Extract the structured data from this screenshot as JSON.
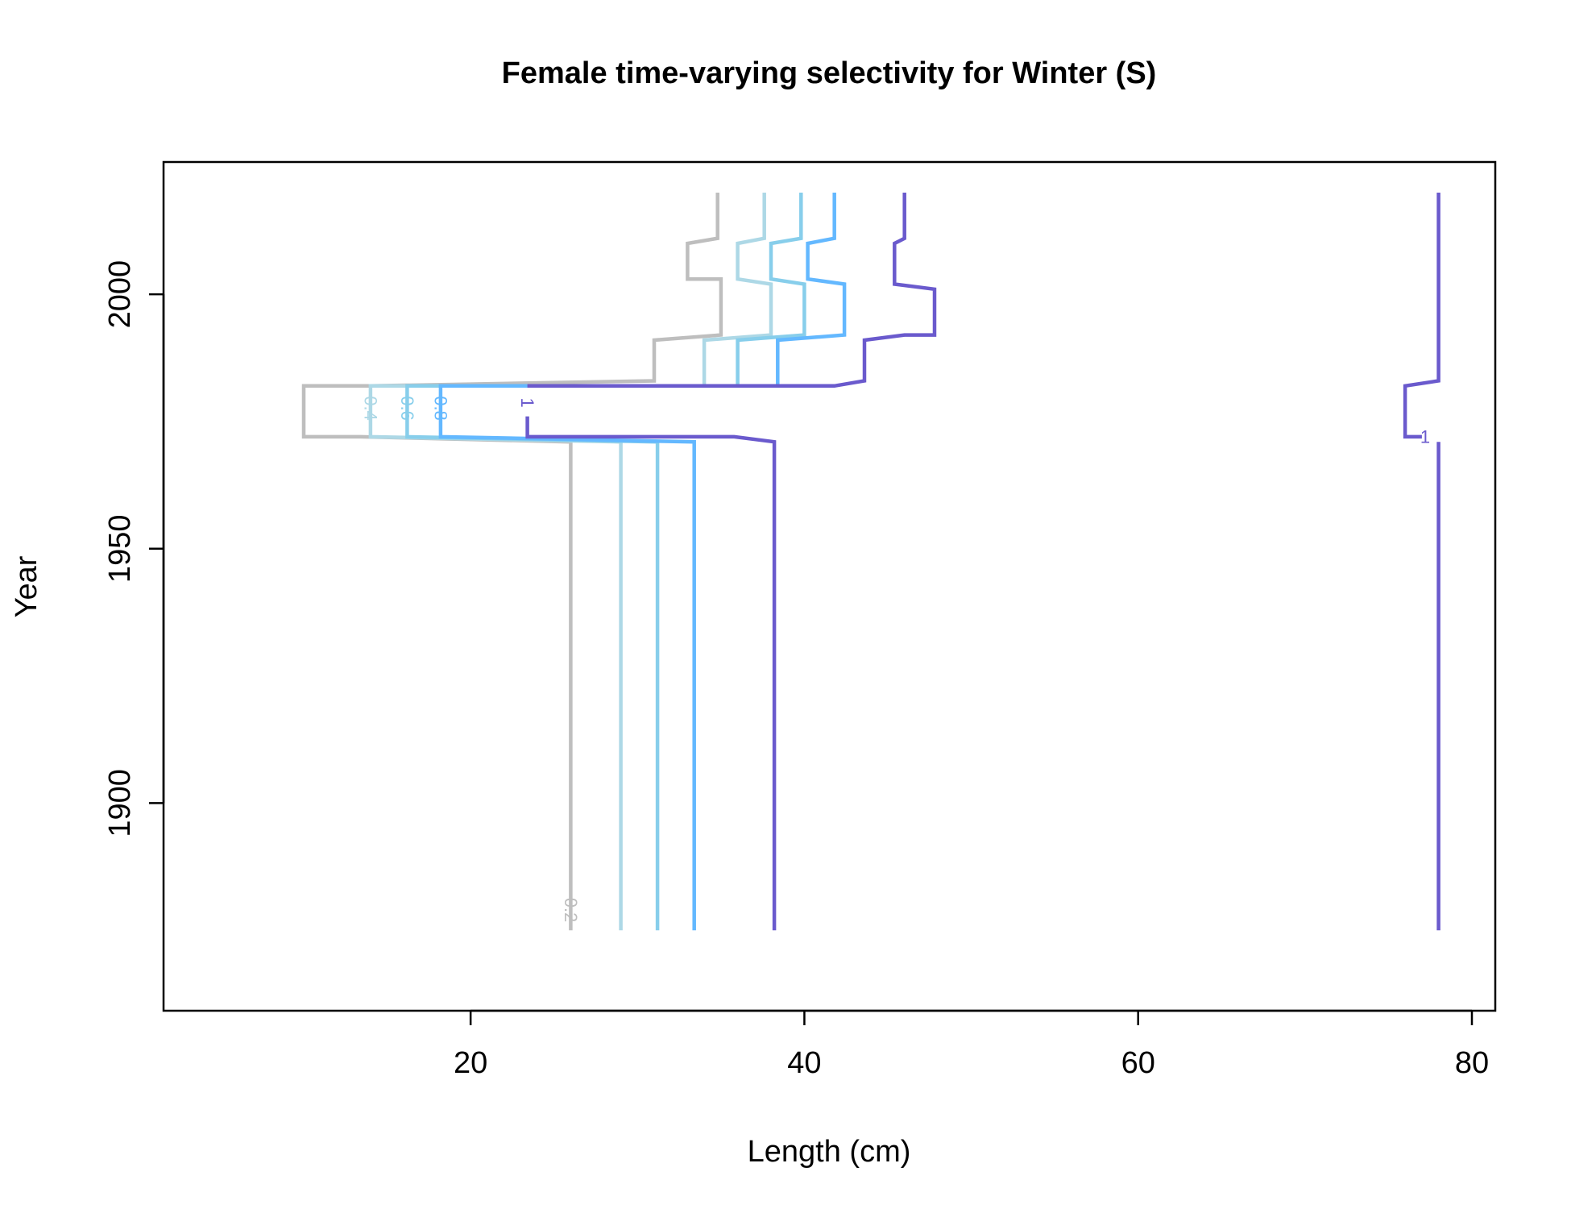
{
  "chart_data": {
    "type": "line",
    "title": "Female time-varying selectivity for Winter (S)",
    "xlabel": "Length (cm)",
    "ylabel": "Year",
    "xlim": [
      1.6,
      81.4
    ],
    "ylim": [
      1859.2,
      2026
    ],
    "x_ticks": [
      20,
      40,
      60,
      80
    ],
    "y_ticks": [
      1900,
      1950,
      2000
    ],
    "grid": false,
    "series": [
      {
        "name": "0.2",
        "color": "#BEBEBE",
        "label_at": [
          26,
          1879
        ],
        "values": [
          [
            26,
            1875
          ],
          [
            26,
            1971
          ],
          [
            13.4,
            1972
          ],
          [
            10,
            1972
          ],
          [
            10,
            1982
          ],
          [
            14,
            1982
          ],
          [
            31,
            1983
          ],
          [
            31,
            1991
          ],
          [
            35,
            1992
          ],
          [
            35,
            2003
          ],
          [
            33,
            2003
          ],
          [
            33,
            2010
          ],
          [
            34.8,
            2011
          ],
          [
            34.8,
            2030
          ]
        ]
      },
      {
        "name": "0.4",
        "color": "#ADD8E6",
        "label_at": [
          14,
          1977.6
        ],
        "values": [
          [
            29,
            1875
          ],
          [
            29,
            1971
          ],
          [
            14,
            1972
          ],
          [
            14,
            1982
          ],
          [
            34,
            1982
          ],
          [
            34,
            1991
          ],
          [
            38,
            1992
          ],
          [
            38,
            2002
          ],
          [
            36,
            2003
          ],
          [
            36,
            2010
          ],
          [
            37.6,
            2011
          ],
          [
            37.6,
            2030
          ]
        ]
      },
      {
        "name": "0.6",
        "color": "#87CEEB",
        "label_at": [
          16.2,
          1977.6
        ],
        "values": [
          [
            31.2,
            1875
          ],
          [
            31.2,
            1971
          ],
          [
            16.2,
            1972
          ],
          [
            16.2,
            1982
          ],
          [
            36,
            1982
          ],
          [
            36,
            1991
          ],
          [
            40,
            1992
          ],
          [
            40,
            2002
          ],
          [
            38,
            2003
          ],
          [
            38,
            2010
          ],
          [
            39.8,
            2011
          ],
          [
            39.8,
            2030
          ]
        ]
      },
      {
        "name": "0.8",
        "color": "#63B8FF",
        "label_at": [
          18.2,
          1977.6
        ],
        "values": [
          [
            33.4,
            1875
          ],
          [
            33.4,
            1971
          ],
          [
            18.2,
            1972
          ],
          [
            18.2,
            1982
          ],
          [
            38.4,
            1982
          ],
          [
            38.4,
            1991
          ],
          [
            42.4,
            1992
          ],
          [
            42.4,
            2002
          ],
          [
            40.2,
            2003
          ],
          [
            40.2,
            2010
          ],
          [
            41.8,
            2011
          ],
          [
            41.8,
            2030
          ]
        ]
      },
      {
        "name": "1",
        "color": "#6A5ACD",
        "label_at": [
          23.4,
          1978.7
        ],
        "values": [
          [
            38.2,
            1875
          ],
          [
            38.2,
            1971
          ],
          [
            35.8,
            1972
          ],
          [
            23.4,
            1972
          ],
          [
            23.4,
            1976
          ]
        ]
      },
      {
        "name": "1",
        "color": "#6A5ACD",
        "label_at": [
          null,
          null
        ],
        "values": [
          [
            23.4,
            1982
          ],
          [
            41.8,
            1982
          ],
          [
            43.6,
            1983
          ],
          [
            43.6,
            1991
          ],
          [
            46,
            1992
          ],
          [
            47.8,
            1992
          ],
          [
            47.8,
            2001
          ],
          [
            45.4,
            2002
          ],
          [
            45.4,
            2010
          ],
          [
            46,
            2011
          ],
          [
            46,
            2030
          ]
        ]
      },
      {
        "name": "1",
        "color": "#6A5ACD",
        "label_at": [
          77.2,
          1972
        ],
        "values": [
          [
            78,
            1875
          ],
          [
            78,
            1971
          ]
        ]
      },
      {
        "name": "1",
        "color": "#6A5ACD",
        "label_at": [
          null,
          null
        ],
        "values": [
          [
            77,
            1972
          ],
          [
            76,
            1972
          ],
          [
            76,
            1982
          ],
          [
            78,
            1983
          ],
          [
            78,
            2030
          ]
        ]
      }
    ]
  }
}
